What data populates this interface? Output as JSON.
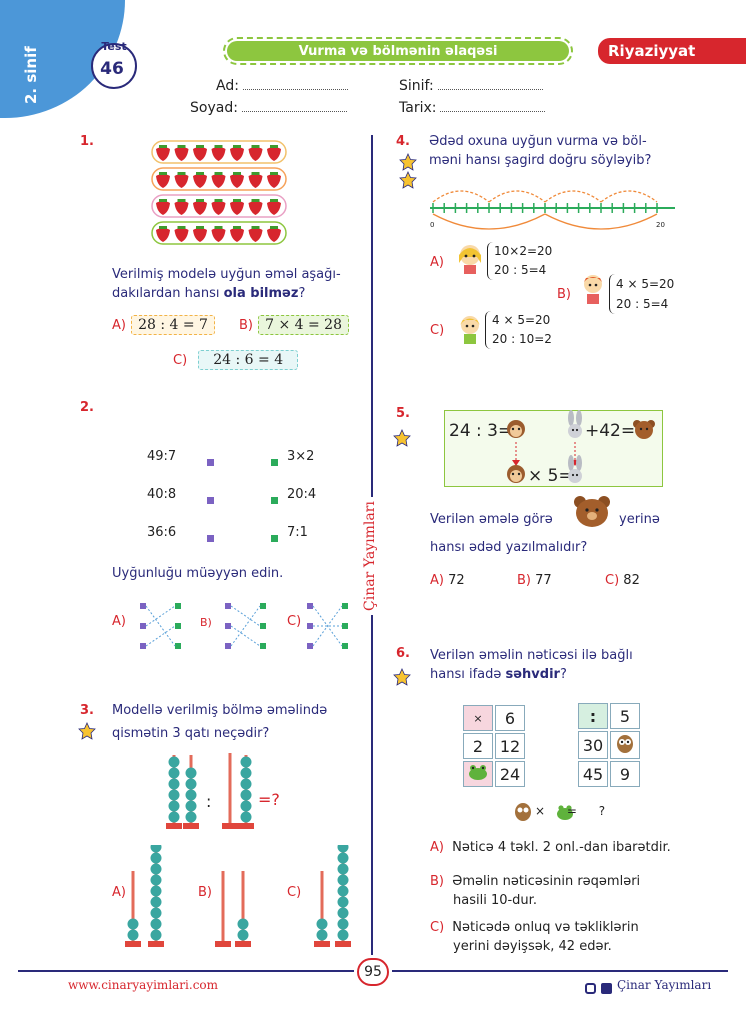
{
  "header": {
    "grade": "2. sinif",
    "test_label": "Test",
    "test_number": "46",
    "topic": "Vurma və bölmənin əlaqəsi",
    "subject": "Riyaziyyat",
    "fields": {
      "name": "Ad:",
      "surname": "Soyad:",
      "class": "Sinif:",
      "date": "Tarix:"
    }
  },
  "q1": {
    "number": "1.",
    "question_line1": "Verilmiş modelə uyğun əməl aşağı-",
    "question_line2_pre": "dakılardan hansı ",
    "question_bold": "ola bilməz",
    "question_end": "?",
    "options": [
      {
        "label": "A)",
        "text": "28 : 4 = 7"
      },
      {
        "label": "B)",
        "text": "7 × 4 = 28"
      },
      {
        "label": "C)",
        "text": "24 : 6 = 4"
      }
    ],
    "rows": 4,
    "per_row": 7
  },
  "q2": {
    "number": "2.",
    "left": [
      "49:7",
      "40:8",
      "36:6"
    ],
    "right": [
      "3×2",
      "20:4",
      "7:1"
    ],
    "instruction": "Uyğunluğu müəyyən edin.",
    "options": [
      "A)",
      "B)",
      "C)"
    ]
  },
  "q3": {
    "number": "3.",
    "line1": "Modellə verilmiş bölmə əməlində",
    "line2": "qismətin 3 qatı neçədir?",
    "colon": ":",
    "eq": "=?",
    "options": [
      "A)",
      "B)",
      "C)"
    ]
  },
  "q4": {
    "number": "4.",
    "line1": "Ədəd oxuna uyğun vurma və böl-",
    "line2": "məni hansı şagird doğru söyləyib?",
    "axis_start": "0",
    "axis_end": "20",
    "options": [
      {
        "label": "A)",
        "l1": "10×2=20",
        "l2": "20 : 5=4"
      },
      {
        "label": "B)",
        "l1": "4 × 5=20",
        "l2": "20 : 5=4"
      },
      {
        "label": "C)",
        "l1": "4 × 5=20",
        "l2": "20 : 10=2"
      }
    ]
  },
  "q5": {
    "number": "5.",
    "expr1": "24 : 3=",
    "expr2": "+42=",
    "expr3": "× 5=",
    "line1a": "Verilən əmələ görə",
    "line1b": "yerinə",
    "line2": "hansı ədəd yazılmalıdır?",
    "options": [
      {
        "label": "A)",
        "value": "72"
      },
      {
        "label": "B)",
        "value": "77"
      },
      {
        "label": "C)",
        "value": "82"
      }
    ]
  },
  "q6": {
    "number": "6.",
    "line1": "Verilən əməlin nəticəsi ilə bağlı",
    "line2_pre": "hansı ifadə ",
    "line2_bold": "səhvdir",
    "line2_end": "?",
    "grid1": [
      "×",
      "6",
      "2",
      "12",
      "",
      "24"
    ],
    "grid2": [
      ":",
      "5",
      "30",
      "",
      "45",
      "9"
    ],
    "expr": "× = ?",
    "options": [
      {
        "label": "A)",
        "l1": "Nəticə 4 təkl. 2 onl.-dan ibarətdir.",
        "l2": ""
      },
      {
        "label": "B)",
        "l1": "Əməlin nəticəsinin rəqəmləri",
        "l2": "hasili 10-dur."
      },
      {
        "label": "C)",
        "l1": "Nəticədə onluq və təkliklərin",
        "l2": "yerini dəyişsək, 42 edər."
      }
    ]
  },
  "footer": {
    "website": "www.cinaryayimlari.com",
    "page": "95",
    "publisher": "Çinar Yayımları",
    "vertical": "Çinar Yayımları"
  },
  "colors": {
    "red": "#d7262d",
    "navy": "#2a2a7a",
    "green": "#8dc63f",
    "blue": "#3f8fd2"
  }
}
